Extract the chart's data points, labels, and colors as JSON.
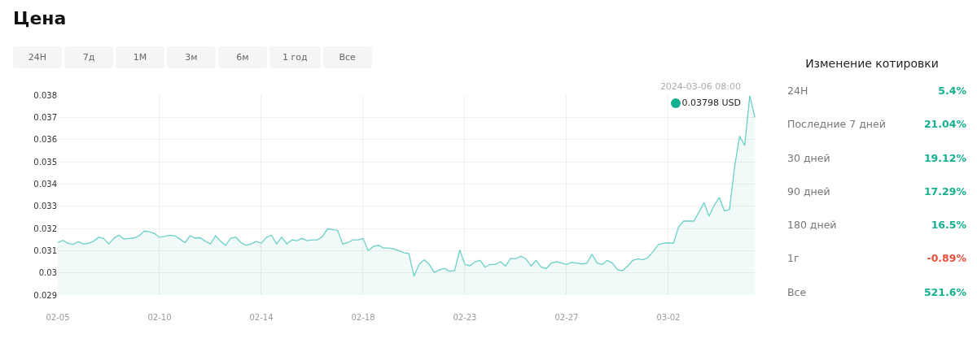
{
  "chart_data": [
    {
      "type": "area",
      "title": "Цена",
      "color": "#6ccfc8",
      "grid": true,
      "legend": false,
      "marker": "none",
      "categories": [
        "02-05",
        null,
        null,
        null,
        null,
        null,
        null,
        null,
        null,
        null,
        null,
        null,
        null,
        null,
        null,
        null,
        null,
        null,
        null,
        null,
        "02-10",
        null,
        null,
        null,
        null,
        null,
        null,
        null,
        null,
        null,
        null,
        null,
        null,
        null,
        null,
        null,
        null,
        null,
        null,
        null,
        "02-14",
        null,
        null,
        null,
        null,
        null,
        null,
        null,
        null,
        null,
        null,
        null,
        null,
        null,
        null,
        null,
        null,
        null,
        null,
        null,
        "02-18",
        null,
        null,
        null,
        null,
        null,
        null,
        null,
        null,
        null,
        null,
        null,
        null,
        null,
        null,
        null,
        null,
        null,
        null,
        null,
        "02-23",
        null,
        null,
        null,
        null,
        null,
        null,
        null,
        null,
        null,
        null,
        null,
        null,
        null,
        null,
        null,
        null,
        null,
        null,
        null,
        "02-27",
        null,
        null,
        null,
        null,
        null,
        null,
        null,
        null,
        null,
        null,
        null,
        null,
        null,
        null,
        null,
        null,
        null,
        null,
        null,
        "03-02",
        null,
        null,
        null,
        null,
        null,
        null,
        null,
        null,
        null,
        null,
        null,
        null,
        null,
        null,
        null,
        null,
        null
      ],
      "values": [
        0.03136,
        0.03146,
        0.03133,
        0.03128,
        0.0314,
        0.0313,
        0.03133,
        0.03142,
        0.0316,
        0.03155,
        0.0313,
        0.03155,
        0.0317,
        0.03152,
        0.03155,
        0.03157,
        0.03167,
        0.03188,
        0.03185,
        0.03177,
        0.0316,
        0.03164,
        0.03169,
        0.03167,
        0.03152,
        0.03136,
        0.03167,
        0.03157,
        0.03158,
        0.03142,
        0.0313,
        0.03167,
        0.03142,
        0.03124,
        0.03157,
        0.0316,
        0.03136,
        0.03124,
        0.0313,
        0.03142,
        0.03133,
        0.0316,
        0.03169,
        0.0313,
        0.0316,
        0.0313,
        0.03148,
        0.03145,
        0.03155,
        0.03145,
        0.03148,
        0.03148,
        0.03163,
        0.03198,
        0.03195,
        0.03191,
        0.0313,
        0.03136,
        0.03148,
        0.03148,
        0.03155,
        0.031,
        0.03118,
        0.03124,
        0.03112,
        0.03112,
        0.03108,
        0.031,
        0.03091,
        0.03087,
        0.02985,
        0.03038,
        0.03059,
        0.03038,
        0.03002,
        0.03014,
        0.0302,
        0.03007,
        0.0301,
        0.03103,
        0.03038,
        0.03032,
        0.0305,
        0.03056,
        0.03026,
        0.03038,
        0.03038,
        0.0305,
        0.03031,
        0.03065,
        0.03063,
        0.03075,
        0.03063,
        0.03031,
        0.03056,
        0.03026,
        0.0302,
        0.03044,
        0.0305,
        0.03044,
        0.03038,
        0.03048,
        0.03044,
        0.0304,
        0.03044,
        0.03084,
        0.03044,
        0.03038,
        0.03056,
        0.03044,
        0.03014,
        0.0301,
        0.03031,
        0.03056,
        0.03063,
        0.03059,
        0.03069,
        0.03096,
        0.03127,
        0.03133,
        0.03135,
        0.03133,
        0.03206,
        0.03233,
        0.03233,
        0.03233,
        0.03273,
        0.03316,
        0.03255,
        0.03304,
        0.0334,
        0.03279,
        0.03285,
        0.03476,
        0.03616,
        0.03573,
        0.03798,
        0.037
      ],
      "ylim": [
        0.029,
        0.038
      ],
      "yticks": [
        0.029,
        0.03,
        0.031,
        0.032,
        0.033,
        0.034,
        0.035,
        0.036,
        0.037,
        0.038
      ],
      "annotations": [
        "24H",
        "7д",
        "1М",
        "3м",
        "6м",
        "1 год",
        "Все",
        "2024-03-06 08:00",
        "0.03798 USD"
      ]
    },
    {
      "type": "other",
      "title": "Изменение котировки",
      "categories": [
        "24H",
        "Последние 7 дней",
        "30 дней",
        "90 дней",
        "180 дней",
        "1г",
        "Все"
      ],
      "values": [
        5.4,
        21.04,
        19.12,
        17.29,
        16.5,
        -0.89,
        521.6
      ],
      "value_labels": [
        "5.4%",
        "21.04%",
        "19.12%",
        "17.29%",
        "16.5%",
        "-0.89%",
        "521.6%"
      ],
      "colors": [
        "#14b08f",
        "#14b08f",
        "#14b08f",
        "#14b08f",
        "#14b08f",
        "#e8503a",
        "#14b08f"
      ]
    }
  ]
}
